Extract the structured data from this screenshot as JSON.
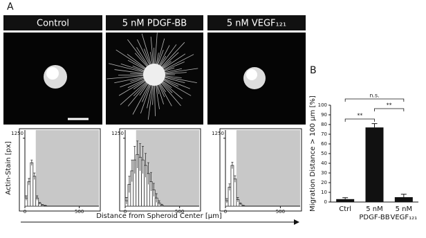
{
  "panel_labels": [
    "A",
    "B"
  ],
  "chart_data": [
    {
      "type": "histogram",
      "title": "Control",
      "ylabel": "Actin-Stain [px]",
      "bins": [
        0,
        25,
        50,
        75,
        100,
        125,
        150,
        175,
        200
      ],
      "values": [
        150,
        450,
        800,
        550,
        150,
        50,
        20,
        10
      ],
      "errors": [
        40,
        60,
        50,
        60,
        40,
        20,
        10,
        5
      ],
      "xlim": [
        0,
        680
      ],
      "ylim": [
        0,
        1400
      ],
      "xticks": [
        0,
        500
      ],
      "yticks": [
        1250
      ],
      "shade_from": 100
    },
    {
      "type": "histogram",
      "title": "5 nM PDGF-BB",
      "xlabel": "Distance from Spheroid Center [µm]",
      "bins": [
        0,
        25,
        50,
        75,
        100,
        125,
        150,
        175,
        200,
        225,
        250,
        275,
        300,
        325,
        350
      ],
      "values": [
        100,
        400,
        650,
        850,
        950,
        900,
        850,
        750,
        600,
        450,
        300,
        150,
        60,
        20
      ],
      "errors": [
        60,
        150,
        200,
        250,
        250,
        250,
        250,
        220,
        200,
        170,
        120,
        80,
        40,
        15
      ],
      "xlim": [
        0,
        680
      ],
      "ylim": [
        0,
        1400
      ],
      "xticks": [
        0,
        500
      ],
      "yticks": [
        1250
      ],
      "shade_from": 100
    },
    {
      "type": "histogram",
      "title": "5 nM VEGF₁₂₁",
      "bins": [
        0,
        25,
        50,
        75,
        100,
        125,
        150,
        175
      ],
      "values": [
        100,
        350,
        750,
        500,
        120,
        40,
        10
      ],
      "errors": [
        40,
        60,
        60,
        60,
        40,
        20,
        5
      ],
      "xlim": [
        0,
        680
      ],
      "ylim": [
        0,
        1400
      ],
      "xticks": [
        0,
        500
      ],
      "yticks": [
        1250
      ],
      "shade_from": 100
    },
    {
      "type": "bar",
      "ylabel": "Migration Distance > 100 µm [%]",
      "categories": [
        "Ctrl",
        "5 nM PDGF-BB",
        "5 nM VEGF₁₂₁"
      ],
      "values": [
        3,
        77,
        5
      ],
      "errors": [
        1.5,
        4,
        3
      ],
      "color": "#111111",
      "ylim": [
        0,
        100
      ],
      "yticks": [
        0,
        10,
        20,
        30,
        40,
        50,
        60,
        70,
        80,
        90,
        100
      ],
      "annotations": [
        "**",
        "**",
        "n.s."
      ]
    }
  ]
}
